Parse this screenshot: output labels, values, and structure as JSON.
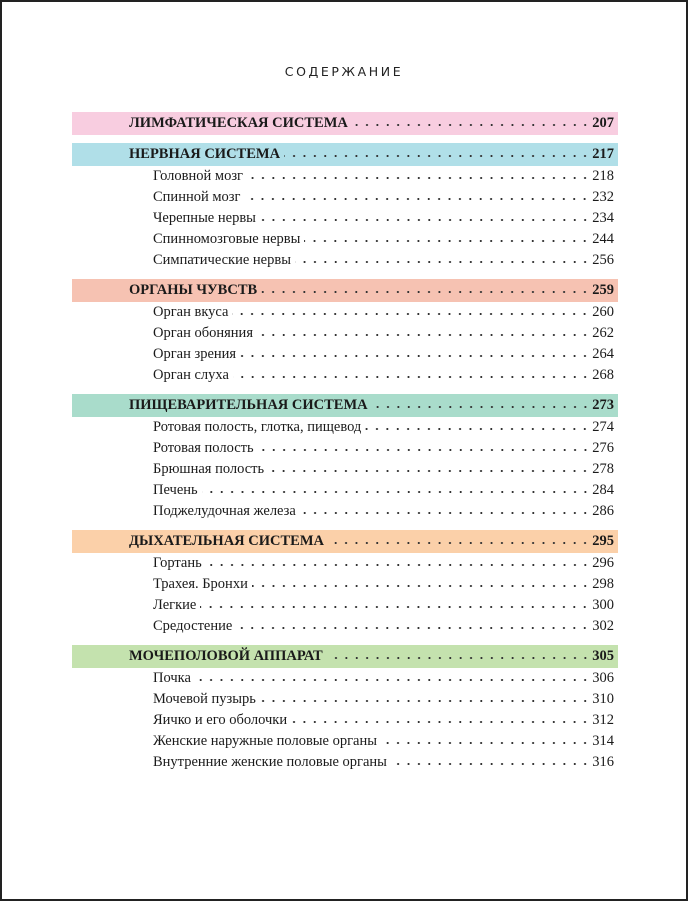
{
  "title": "СОДЕРЖАНИЕ",
  "sections": [
    {
      "label": "ЛИМФАТИЧЕСКАЯ СИСТЕМА",
      "page": "207",
      "color": "#f8cde0",
      "items": []
    },
    {
      "label": "НЕРВНАЯ СИСТЕМА",
      "page": "217",
      "color": "#b0dfe8",
      "items": [
        {
          "label": "Головной мозг",
          "page": "218"
        },
        {
          "label": "Спинной мозг",
          "page": "232"
        },
        {
          "label": "Черепные нервы",
          "page": "234"
        },
        {
          "label": "Спинномозговые нервы",
          "page": "244"
        },
        {
          "label": "Симпатические нервы",
          "page": "256"
        }
      ]
    },
    {
      "label": "ОРГАНЫ ЧУВСТВ",
      "page": "259",
      "color": "#f6c2b2",
      "items": [
        {
          "label": "Орган вкуса",
          "page": "260"
        },
        {
          "label": "Орган обоняния",
          "page": "262"
        },
        {
          "label": "Орган зрения",
          "page": "264"
        },
        {
          "label": "Орган слуха",
          "page": "268"
        }
      ]
    },
    {
      "label": "ПИЩЕВАРИТЕЛЬНАЯ СИСТЕМА",
      "page": "273",
      "color": "#a9dccb",
      "items": [
        {
          "label": "Ротовая полость, глотка, пищевод",
          "page": "274"
        },
        {
          "label": "Ротовая полость",
          "page": "276"
        },
        {
          "label": "Брюшная полость",
          "page": "278"
        },
        {
          "label": "Печень",
          "page": "284"
        },
        {
          "label": "Поджелудочная железа",
          "page": "286"
        }
      ]
    },
    {
      "label": "ДЫХАТЕЛЬНАЯ СИСТЕМА",
      "page": "295",
      "color": "#fbd0a9",
      "items": [
        {
          "label": "Гортань",
          "page": "296"
        },
        {
          "label": "Трахея. Бронхи",
          "page": "298"
        },
        {
          "label": "Легкие",
          "page": "300"
        },
        {
          "label": "Средостение",
          "page": "302"
        }
      ]
    },
    {
      "label": "МОЧЕПОЛОВОЙ АППАРАТ",
      "page": "305",
      "color": "#c4e2ae",
      "items": [
        {
          "label": "Почка",
          "page": "306"
        },
        {
          "label": "Мочевой пузырь",
          "page": "310"
        },
        {
          "label": "Яичко и его оболочки",
          "page": "312"
        },
        {
          "label": "Женские наружные половые органы",
          "page": "314"
        },
        {
          "label": "Внутренние женские половые органы",
          "page": "316"
        }
      ]
    }
  ]
}
